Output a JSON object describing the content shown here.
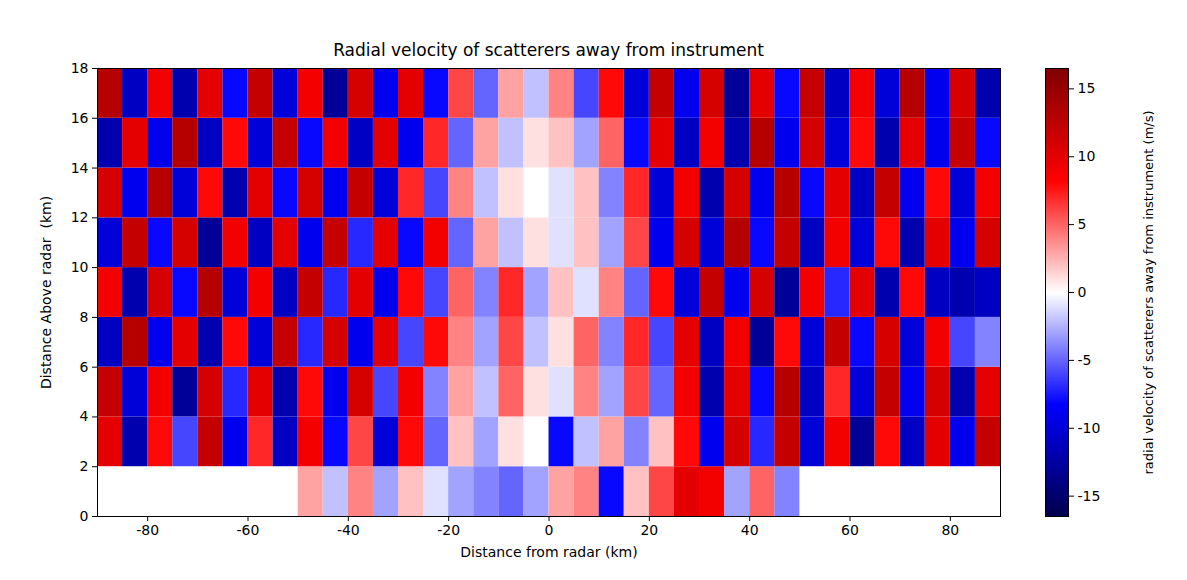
{
  "chart_data": {
    "type": "heatmap",
    "title": "Radial velocity of scatterers away from instrument",
    "x_label": "Distance from radar (km)",
    "y_label": "Distance Above radar  (km)",
    "xlim": [
      -90,
      90
    ],
    "ylim": [
      0,
      18
    ],
    "xticks": [
      -80,
      -60,
      -40,
      -20,
      0,
      20,
      40,
      60,
      80
    ],
    "yticks": [
      0,
      2,
      4,
      6,
      8,
      10,
      12,
      14,
      16,
      18
    ],
    "x_edges": [
      -90,
      -85,
      -80,
      -75,
      -70,
      -65,
      -60,
      -55,
      -50,
      -45,
      -40,
      -35,
      -30,
      -25,
      -20,
      -15,
      -10,
      -5,
      0,
      5,
      10,
      15,
      20,
      25,
      30,
      35,
      40,
      45,
      50,
      55,
      60,
      65,
      70,
      75,
      80,
      85,
      90
    ],
    "y_edges": [
      0,
      2,
      4,
      6,
      8,
      10,
      12,
      14,
      16,
      18
    ],
    "cells": [
      [
        null,
        null,
        null,
        null,
        null,
        null,
        null,
        null,
        3,
        -2,
        4,
        -3,
        2,
        -1,
        -3,
        -4,
        -5,
        -3,
        3,
        4,
        -8,
        2,
        6,
        10,
        9,
        -3,
        5,
        -4,
        null,
        null,
        null,
        null,
        null,
        null,
        null,
        null
      ],
      [
        10,
        -12,
        8,
        -6,
        12,
        -9,
        7,
        -11,
        9,
        -8,
        6,
        -10,
        8,
        -5,
        2,
        -3,
        1,
        0,
        -8,
        -2,
        3,
        -4,
        2,
        8,
        -9,
        11,
        -7,
        12,
        -10,
        9,
        -13,
        8,
        -11,
        10,
        -9,
        12
      ],
      [
        12,
        -10,
        9,
        -13,
        11,
        -7,
        10,
        -12,
        8,
        -9,
        11,
        -6,
        9,
        -4,
        3,
        -2,
        5,
        1,
        -1,
        4,
        -3,
        6,
        -5,
        9,
        -12,
        10,
        -8,
        13,
        -11,
        7,
        -10,
        12,
        -9,
        11,
        -12,
        10
      ],
      [
        -11,
        13,
        -9,
        10,
        -12,
        8,
        -10,
        12,
        -7,
        11,
        -9,
        10,
        -6,
        8,
        4,
        -3,
        6,
        -2,
        1,
        5,
        -4,
        7,
        -6,
        10,
        -11,
        9,
        -13,
        8,
        -10,
        12,
        -8,
        11,
        -10,
        9,
        -6,
        -4
      ],
      [
        9,
        -12,
        11,
        -8,
        13,
        -10,
        9,
        -11,
        12,
        -7,
        10,
        -9,
        8,
        -6,
        5,
        -4,
        7,
        -3,
        2,
        -1,
        4,
        -5,
        8,
        -10,
        12,
        -9,
        11,
        -13,
        9,
        -7,
        10,
        -12,
        8,
        -11,
        -12,
        -11
      ],
      [
        -10,
        12,
        -8,
        11,
        -13,
        9,
        -11,
        10,
        -9,
        12,
        -7,
        10,
        -8,
        9,
        -5,
        3,
        -2,
        1,
        -1,
        2,
        -3,
        6,
        -9,
        11,
        -10,
        13,
        -8,
        12,
        -11,
        9,
        -10,
        8,
        -12,
        10,
        -9,
        11
      ],
      [
        11,
        -9,
        13,
        -10,
        8,
        -12,
        10,
        -8,
        11,
        -9,
        12,
        -10,
        7,
        -6,
        4,
        -2,
        1,
        0,
        -1,
        2,
        -4,
        7,
        -10,
        9,
        -12,
        11,
        -9,
        13,
        -8,
        10,
        -11,
        12,
        -9,
        8,
        -10,
        9
      ],
      [
        -12,
        10,
        -9,
        13,
        -11,
        8,
        -10,
        12,
        -8,
        9,
        -11,
        10,
        -9,
        7,
        -5,
        3,
        -2,
        1,
        2,
        -3,
        5,
        -8,
        10,
        -11,
        9,
        -12,
        13,
        -9,
        11,
        -10,
        8,
        -12,
        10,
        -9,
        12,
        -8
      ],
      [
        13,
        -11,
        9,
        -12,
        10,
        -8,
        12,
        -10,
        9,
        -13,
        11,
        -9,
        10,
        -8,
        6,
        -5,
        3,
        -2,
        4,
        -6,
        8,
        -10,
        12,
        -9,
        11,
        -13,
        10,
        -8,
        12,
        -11,
        9,
        -10,
        13,
        -9,
        11,
        -12
      ]
    ],
    "colorbar_label": "radial velocity of scatterers away from instrument (m/s)",
    "colorbar_range": [
      -16.5,
      16.5
    ],
    "colorbar_ticks": [
      -15,
      -10,
      -5,
      0,
      5,
      10,
      15
    ]
  }
}
